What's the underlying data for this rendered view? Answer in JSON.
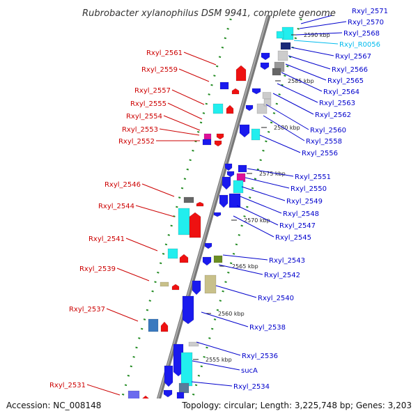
{
  "title": "Rubrobacter xylanophilus DSM 9941, complete genome",
  "accession": "Accession: NC_008148",
  "topology": "Topology: circular; Length: 3,225,748 bp; Genes: 3,203",
  "colors": {
    "forward_label": "#0000cc",
    "reverse_label": "#cc0000",
    "rna_label": "#00bbee",
    "backbone": "#888888",
    "dots": "#228b22"
  },
  "scale_ticks": [
    "2590 kbp",
    "2585 kbp",
    "2580 kbp",
    "2575 kbp",
    "2570 kbp",
    "2565 kbp",
    "2560 kbp",
    "2555 kbp"
  ],
  "right_labels": [
    "Rxyl_2571",
    "Rxyl_2570",
    "Rxyl_2568",
    "Rxyl_R0056",
    "Rxyl_2567",
    "Rxyl_2566",
    "Rxyl_2565",
    "Rxyl_2564",
    "Rxyl_2563",
    "Rxyl_2562",
    "Rxyl_2560",
    "Rxyl_2558",
    "Rxyl_2556",
    "Rxyl_2551",
    "Rxyl_2550",
    "Rxyl_2549",
    "Rxyl_2548",
    "Rxyl_2547",
    "Rxyl_2545",
    "Rxyl_2543",
    "Rxyl_2542",
    "Rxyl_2540",
    "Rxyl_2538",
    "Rxyl_2536",
    "sucA",
    "Rxyl_2534"
  ],
  "left_labels": [
    "Rxyl_2561",
    "Rxyl_2559",
    "Rxyl_2557",
    "Rxyl_2555",
    "Rxyl_2554",
    "Rxyl_2553",
    "Rxyl_2552",
    "Rxyl_2546",
    "Rxyl_2544",
    "Rxyl_2541",
    "Rxyl_2539",
    "Rxyl_2537",
    "Rxyl_2531"
  ]
}
